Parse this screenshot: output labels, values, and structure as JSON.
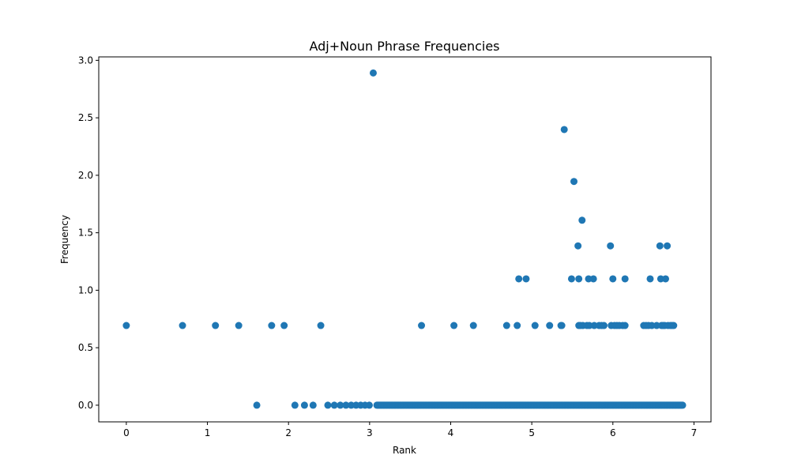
{
  "chart_data": {
    "type": "scatter",
    "title": "Adj+Noun Phrase Frequencies",
    "xlabel": "Rank",
    "ylabel": "Frequency",
    "xlim": [
      -0.34,
      7.21
    ],
    "ylim": [
      -0.145,
      3.03
    ],
    "xticks": [
      0,
      1,
      2,
      3,
      4,
      5,
      6,
      7
    ],
    "yticks": [
      0.0,
      0.5,
      1.0,
      1.5,
      2.0,
      2.5,
      3.0
    ],
    "xtick_labels": [
      "0",
      "1",
      "2",
      "3",
      "4",
      "5",
      "6",
      "7"
    ],
    "ytick_labels": [
      "0.0",
      "0.5",
      "1.0",
      "1.5",
      "2.0",
      "2.5",
      "3.0"
    ],
    "grid": false,
    "marker_color": "#1f77b4",
    "points": [
      {
        "x": 0.0,
        "y": 0.693
      },
      {
        "x": 0.693,
        "y": 0.693
      },
      {
        "x": 1.099,
        "y": 0.693
      },
      {
        "x": 1.386,
        "y": 0.693
      },
      {
        "x": 1.609,
        "y": 0.0
      },
      {
        "x": 1.792,
        "y": 0.693
      },
      {
        "x": 1.946,
        "y": 0.693
      },
      {
        "x": 2.079,
        "y": 0.0
      },
      {
        "x": 2.197,
        "y": 0.0
      },
      {
        "x": 2.303,
        "y": 0.0
      },
      {
        "x": 2.398,
        "y": 0.693
      },
      {
        "x": 2.485,
        "y": 0.0
      },
      {
        "x": 2.565,
        "y": 0.0
      },
      {
        "x": 2.639,
        "y": 0.0
      },
      {
        "x": 2.708,
        "y": 0.0
      },
      {
        "x": 2.773,
        "y": 0.0
      },
      {
        "x": 2.833,
        "y": 0.0
      },
      {
        "x": 2.89,
        "y": 0.0
      },
      {
        "x": 2.944,
        "y": 0.0
      },
      {
        "x": 2.996,
        "y": 0.0
      },
      {
        "x": 3.045,
        "y": 2.89
      },
      {
        "x": 3.64,
        "y": 0.693
      },
      {
        "x": 4.04,
        "y": 0.693
      },
      {
        "x": 4.28,
        "y": 0.693
      },
      {
        "x": 4.69,
        "y": 0.693
      },
      {
        "x": 4.82,
        "y": 0.693
      },
      {
        "x": 4.84,
        "y": 1.099
      },
      {
        "x": 4.93,
        "y": 1.099
      },
      {
        "x": 5.04,
        "y": 0.693
      },
      {
        "x": 5.22,
        "y": 0.693
      },
      {
        "x": 5.36,
        "y": 0.693
      },
      {
        "x": 5.37,
        "y": 0.693
      },
      {
        "x": 5.4,
        "y": 2.398
      },
      {
        "x": 5.49,
        "y": 1.099
      },
      {
        "x": 5.52,
        "y": 1.946
      },
      {
        "x": 5.57,
        "y": 1.386
      },
      {
        "x": 5.58,
        "y": 1.099
      },
      {
        "x": 5.58,
        "y": 0.693
      },
      {
        "x": 5.6,
        "y": 0.693
      },
      {
        "x": 5.62,
        "y": 1.609
      },
      {
        "x": 5.63,
        "y": 0.693
      },
      {
        "x": 5.68,
        "y": 0.693
      },
      {
        "x": 5.7,
        "y": 1.099
      },
      {
        "x": 5.71,
        "y": 0.693
      },
      {
        "x": 5.76,
        "y": 1.099
      },
      {
        "x": 5.77,
        "y": 0.693
      },
      {
        "x": 5.83,
        "y": 0.693
      },
      {
        "x": 5.86,
        "y": 0.693
      },
      {
        "x": 5.89,
        "y": 0.693
      },
      {
        "x": 5.97,
        "y": 1.386
      },
      {
        "x": 5.98,
        "y": 0.693
      },
      {
        "x": 6.0,
        "y": 1.099
      },
      {
        "x": 6.02,
        "y": 0.693
      },
      {
        "x": 6.05,
        "y": 0.693
      },
      {
        "x": 6.08,
        "y": 0.693
      },
      {
        "x": 6.12,
        "y": 0.693
      },
      {
        "x": 6.15,
        "y": 1.099
      },
      {
        "x": 6.15,
        "y": 0.693
      },
      {
        "x": 6.38,
        "y": 0.693
      },
      {
        "x": 6.41,
        "y": 0.693
      },
      {
        "x": 6.44,
        "y": 0.693
      },
      {
        "x": 6.46,
        "y": 1.099
      },
      {
        "x": 6.48,
        "y": 0.693
      },
      {
        "x": 6.54,
        "y": 0.693
      },
      {
        "x": 6.58,
        "y": 1.386
      },
      {
        "x": 6.59,
        "y": 1.099
      },
      {
        "x": 6.6,
        "y": 0.693
      },
      {
        "x": 6.62,
        "y": 0.693
      },
      {
        "x": 6.64,
        "y": 0.693
      },
      {
        "x": 6.65,
        "y": 1.099
      },
      {
        "x": 6.67,
        "y": 1.386
      },
      {
        "x": 6.68,
        "y": 0.693
      },
      {
        "x": 6.71,
        "y": 0.693
      },
      {
        "x": 6.73,
        "y": 0.693
      },
      {
        "x": 6.75,
        "y": 0.693
      }
    ],
    "zero_run": {
      "x_start": 3.09,
      "x_end": 6.86,
      "count": 280,
      "y": 0.0
    }
  }
}
